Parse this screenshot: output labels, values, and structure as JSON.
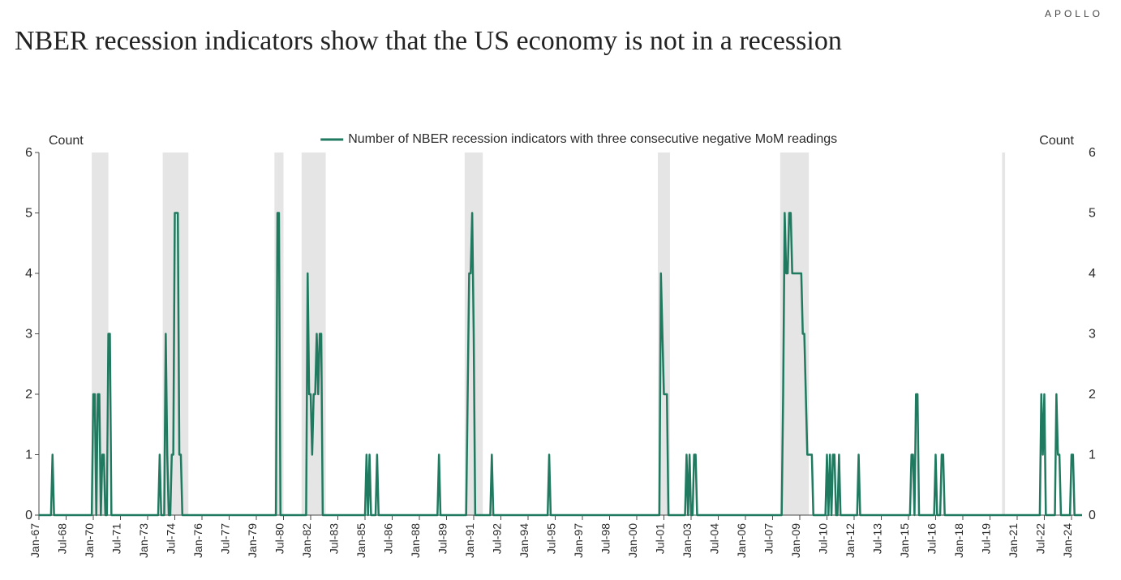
{
  "brand": "APOLLO",
  "title": "NBER recession indicators show that the US economy is not in a recession",
  "chart": {
    "type": "line",
    "legend_label": "Number of NBER recession indicators with three consecutive negative MoM readings",
    "y_axis_title_left": "Count",
    "y_axis_title_right": "Count",
    "line_color": "#1f7a5f",
    "line_width": 2.5,
    "background_color": "#ffffff",
    "recession_band_color": "#e5e5e5",
    "axis_color": "#4a4a4a",
    "tick_color": "#4a4a4a",
    "text_color": "#2b2b2b",
    "title_fontsize": 34,
    "label_fontsize": 16,
    "tick_fontsize": 16,
    "x_tick_fontsize": 14,
    "ylim": [
      0,
      6
    ],
    "ytick_step": 1,
    "x_start_year": 1967,
    "x_start_month": 1,
    "x_end_year": 2024,
    "x_end_month": 9,
    "x_tick_labels": [
      "Jan-67",
      "Jul-68",
      "Jan-70",
      "Jul-71",
      "Jan-73",
      "Jul-74",
      "Jan-76",
      "Jul-77",
      "Jan-79",
      "Jul-80",
      "Jan-82",
      "Jul-83",
      "Jan-85",
      "Jul-86",
      "Jan-88",
      "Jul-89",
      "Jan-91",
      "Jul-92",
      "Jan-94",
      "Jul-95",
      "Jan-97",
      "Jul-98",
      "Jan-00",
      "Jul-01",
      "Jan-03",
      "Jul-04",
      "Jan-06",
      "Jul-07",
      "Jan-09",
      "Jul-10",
      "Jan-12",
      "Jul-13",
      "Jan-15",
      "Jul-16",
      "Jan-18",
      "Jul-19",
      "Jan-21",
      "Jul-22",
      "Jan-24"
    ],
    "x_tick_positions": [
      0,
      18,
      36,
      54,
      72,
      90,
      108,
      126,
      144,
      162,
      180,
      198,
      216,
      234,
      252,
      270,
      288,
      306,
      324,
      342,
      360,
      378,
      396,
      414,
      432,
      450,
      468,
      486,
      504,
      522,
      540,
      558,
      576,
      594,
      612,
      630,
      648,
      666,
      684
    ],
    "recession_bands": [
      {
        "start": 35,
        "end": 46
      },
      {
        "start": 82,
        "end": 99
      },
      {
        "start": 156,
        "end": 162
      },
      {
        "start": 174,
        "end": 190
      },
      {
        "start": 282,
        "end": 294
      },
      {
        "start": 410,
        "end": 418
      },
      {
        "start": 491,
        "end": 510
      },
      {
        "start": 638,
        "end": 640
      }
    ],
    "series": [
      0,
      0,
      0,
      0,
      0,
      0,
      0,
      0,
      0,
      1,
      0,
      0,
      0,
      0,
      0,
      0,
      0,
      0,
      0,
      0,
      0,
      0,
      0,
      0,
      0,
      0,
      0,
      0,
      0,
      0,
      0,
      0,
      0,
      0,
      0,
      0,
      2,
      2,
      0,
      2,
      2,
      0,
      1,
      1,
      0,
      0,
      3,
      3,
      0,
      0,
      0,
      0,
      0,
      0,
      0,
      0,
      0,
      0,
      0,
      0,
      0,
      0,
      0,
      0,
      0,
      0,
      0,
      0,
      0,
      0,
      0,
      0,
      0,
      0,
      0,
      0,
      0,
      0,
      0,
      0,
      1,
      0,
      0,
      0,
      3,
      1,
      0,
      0,
      1,
      1,
      5,
      5,
      5,
      1,
      1,
      0,
      0,
      0,
      0,
      0,
      0,
      0,
      0,
      0,
      0,
      0,
      0,
      0,
      0,
      0,
      0,
      0,
      0,
      0,
      0,
      0,
      0,
      0,
      0,
      0,
      0,
      0,
      0,
      0,
      0,
      0,
      0,
      0,
      0,
      0,
      0,
      0,
      0,
      0,
      0,
      0,
      0,
      0,
      0,
      0,
      0,
      0,
      0,
      0,
      0,
      0,
      0,
      0,
      0,
      0,
      0,
      0,
      0,
      0,
      0,
      0,
      0,
      0,
      5,
      5,
      0,
      0,
      0,
      0,
      0,
      0,
      0,
      0,
      0,
      0,
      0,
      0,
      0,
      0,
      0,
      0,
      0,
      0,
      4,
      2,
      2,
      1,
      2,
      2,
      3,
      2,
      3,
      3,
      0,
      0,
      0,
      0,
      0,
      0,
      0,
      0,
      0,
      0,
      0,
      0,
      0,
      0,
      0,
      0,
      0,
      0,
      0,
      0,
      0,
      0,
      0,
      0,
      0,
      0,
      0,
      0,
      0,
      1,
      0,
      1,
      0,
      0,
      0,
      0,
      1,
      0,
      0,
      0,
      0,
      0,
      0,
      0,
      0,
      0,
      0,
      0,
      0,
      0,
      0,
      0,
      0,
      0,
      0,
      0,
      0,
      0,
      0,
      0,
      0,
      0,
      0,
      0,
      0,
      0,
      0,
      0,
      0,
      0,
      0,
      0,
      0,
      0,
      0,
      0,
      0,
      1,
      0,
      0,
      0,
      0,
      0,
      0,
      0,
      0,
      0,
      0,
      0,
      0,
      0,
      0,
      0,
      0,
      0,
      0,
      2,
      4,
      4,
      5,
      3,
      0,
      0,
      0,
      0,
      0,
      0,
      0,
      0,
      0,
      0,
      0,
      1,
      0,
      0,
      0,
      0,
      0,
      0,
      0,
      0,
      0,
      0,
      0,
      0,
      0,
      0,
      0,
      0,
      0,
      0,
      0,
      0,
      0,
      0,
      0,
      0,
      0,
      0,
      0,
      0,
      0,
      0,
      0,
      0,
      0,
      0,
      0,
      0,
      0,
      1,
      0,
      0,
      0,
      0,
      0,
      0,
      0,
      0,
      0,
      0,
      0,
      0,
      0,
      0,
      0,
      0,
      0,
      0,
      0,
      0,
      0,
      0,
      0,
      0,
      0,
      0,
      0,
      0,
      0,
      0,
      0,
      0,
      0,
      0,
      0,
      0,
      0,
      0,
      0,
      0,
      0,
      0,
      0,
      0,
      0,
      0,
      0,
      0,
      0,
      0,
      0,
      0,
      0,
      0,
      0,
      0,
      0,
      0,
      0,
      0,
      0,
      0,
      0,
      0,
      0,
      0,
      0,
      0,
      0,
      0,
      0,
      0,
      0,
      4,
      3,
      2,
      2,
      2,
      0,
      0,
      0,
      0,
      0,
      0,
      0,
      0,
      0,
      0,
      0,
      0,
      1,
      0,
      1,
      0,
      0,
      1,
      1,
      0,
      0,
      0,
      0,
      0,
      0,
      0,
      0,
      0,
      0,
      0,
      0,
      0,
      0,
      0,
      0,
      0,
      0,
      0,
      0,
      0,
      0,
      0,
      0,
      0,
      0,
      0,
      0,
      0,
      0,
      0,
      0,
      0,
      0,
      0,
      0,
      0,
      0,
      0,
      0,
      0,
      0,
      0,
      0,
      0,
      0,
      0,
      0,
      0,
      0,
      0,
      0,
      0,
      0,
      0,
      0,
      0,
      2,
      5,
      4,
      4,
      5,
      5,
      4,
      4,
      4,
      4,
      4,
      4,
      4,
      3,
      3,
      2,
      1,
      1,
      1,
      1,
      0,
      0,
      0,
      0,
      0,
      0,
      0,
      0,
      0,
      1,
      0,
      1,
      0,
      1,
      1,
      0,
      0,
      1,
      0,
      0,
      0,
      0,
      0,
      0,
      0,
      0,
      0,
      0,
      0,
      0,
      1,
      0,
      0,
      0,
      0,
      0,
      0,
      0,
      0,
      0,
      0,
      0,
      0,
      0,
      0,
      0,
      0,
      0,
      0,
      0,
      0,
      0,
      0,
      0,
      0,
      0,
      0,
      0,
      0,
      0,
      0,
      0,
      0,
      0,
      0,
      1,
      1,
      0,
      2,
      2,
      0,
      0,
      0,
      0,
      0,
      0,
      0,
      0,
      0,
      0,
      0,
      1,
      0,
      0,
      0,
      1,
      1,
      0,
      0,
      0,
      0,
      0,
      0,
      0,
      0,
      0,
      0,
      0,
      0,
      0,
      0,
      0,
      0,
      0,
      0,
      0,
      0,
      0,
      0,
      0,
      0,
      0,
      0,
      0,
      0,
      0,
      0,
      0,
      0,
      0,
      0,
      0,
      0,
      0,
      0,
      0,
      0,
      0,
      0,
      0,
      0,
      0,
      0,
      0,
      0,
      0,
      0,
      0,
      0,
      0,
      0,
      0,
      0,
      0,
      0,
      0,
      0,
      0,
      0,
      0,
      0,
      2,
      1,
      2,
      0,
      0,
      0,
      0,
      0,
      0,
      0,
      2,
      1,
      1,
      0,
      0,
      0,
      0,
      0,
      0,
      0,
      1,
      1,
      0,
      0,
      0,
      0,
      0,
      0
    ]
  }
}
